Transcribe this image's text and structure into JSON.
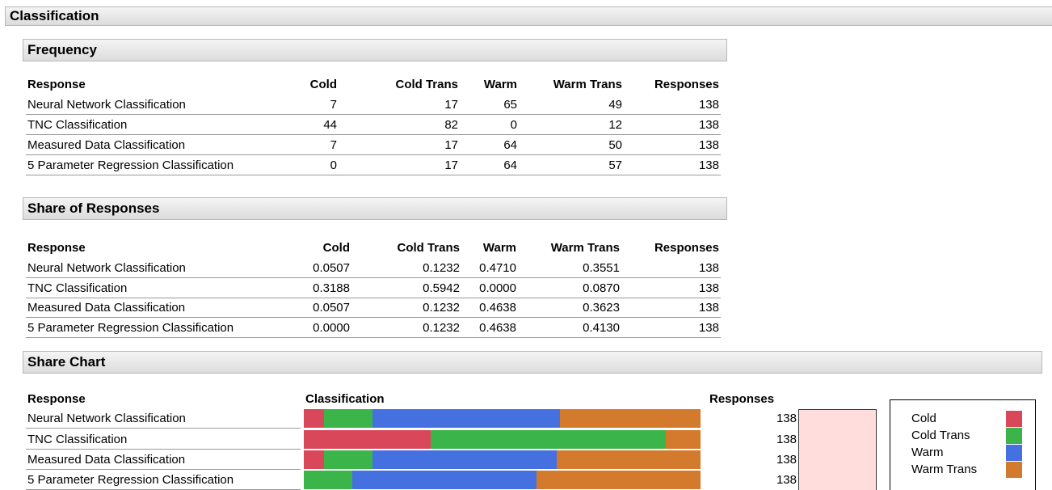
{
  "title": "Classification",
  "frequency": {
    "title": "Frequency",
    "columns": [
      "Response",
      "Cold",
      "Cold Trans",
      "Warm",
      "Warm Trans",
      "Responses"
    ],
    "rows": [
      [
        "Neural Network Classification",
        7,
        17,
        65,
        49,
        138
      ],
      [
        "TNC Classification",
        44,
        82,
        0,
        12,
        138
      ],
      [
        "Measured Data Classification",
        7,
        17,
        64,
        50,
        138
      ],
      [
        "5 Parameter Regression Classification",
        0,
        17,
        64,
        57,
        138
      ]
    ]
  },
  "share_of_responses": {
    "title": "Share of Responses",
    "columns": [
      "Response",
      "Cold",
      "Cold Trans",
      "Warm",
      "Warm Trans",
      "Responses"
    ],
    "rows": [
      [
        "Neural Network Classification",
        "0.0507",
        "0.1232",
        "0.4710",
        "0.3551",
        138
      ],
      [
        "TNC Classification",
        "0.3188",
        "0.5942",
        "0.0000",
        "0.0870",
        138
      ],
      [
        "Measured Data Classification",
        "0.0507",
        "0.1232",
        "0.4638",
        "0.3623",
        138
      ],
      [
        "5 Parameter Regression Classification",
        "0.0000",
        "0.1232",
        "0.4638",
        "0.4130",
        138
      ]
    ]
  },
  "share_chart": {
    "title": "Share Chart",
    "columns": [
      "Response",
      "Classification",
      "Responses"
    ],
    "rows": [
      {
        "label": "Neural Network Classification",
        "responses": 138
      },
      {
        "label": "TNC Classification",
        "responses": 138
      },
      {
        "label": "Measured Data Classification",
        "responses": 138
      },
      {
        "label": "5 Parameter Regression Classification",
        "responses": 138
      }
    ],
    "legend": [
      {
        "name": "Cold",
        "color": "#d9475b"
      },
      {
        "name": "Cold Trans",
        "color": "#3bb54a"
      },
      {
        "name": "Warm",
        "color": "#4470e0"
      },
      {
        "name": "Warm Trans",
        "color": "#d47a2c"
      }
    ]
  }
}
